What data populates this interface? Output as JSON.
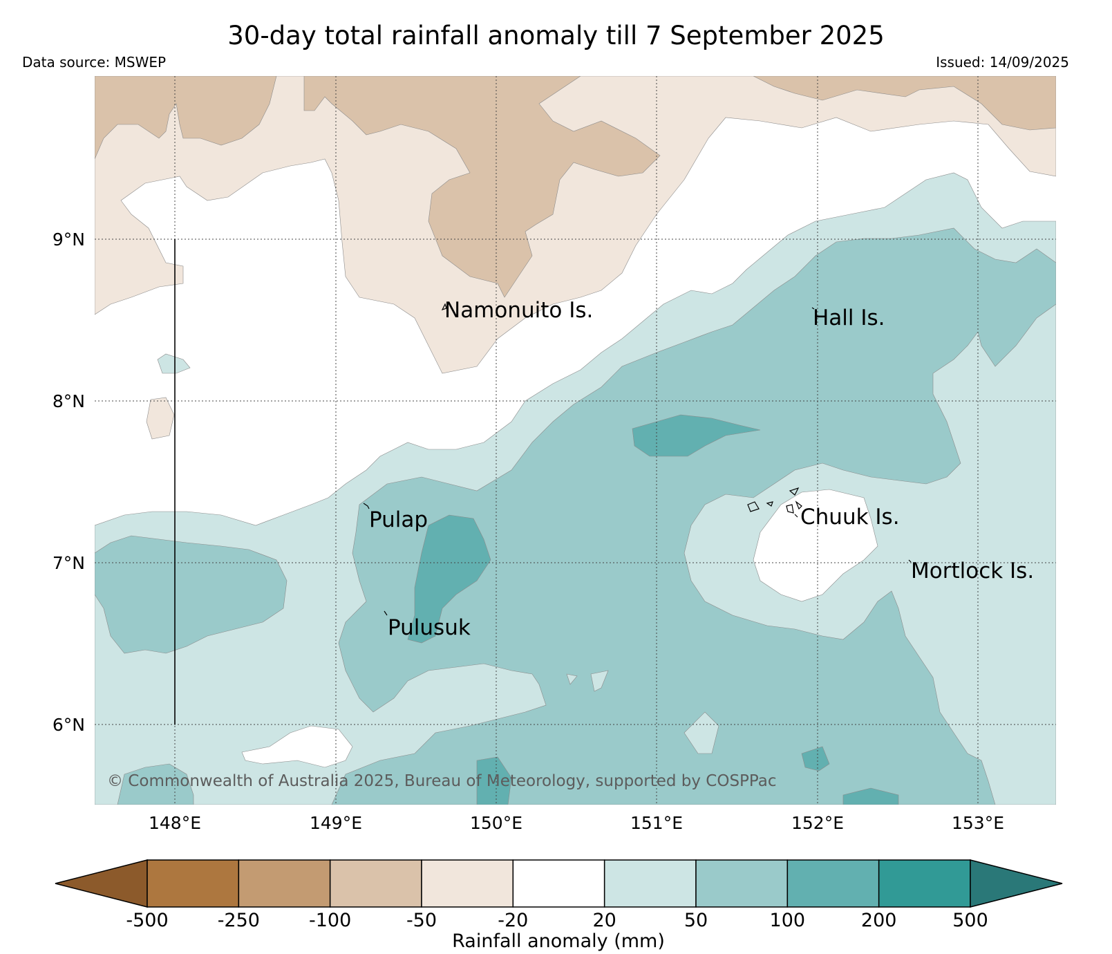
{
  "header": {
    "title": "30-day total rainfall anomaly till 7 September 2025",
    "source": "Data source: MSWEP",
    "issued": "Issued: 14/09/2025"
  },
  "map": {
    "lat_ticks": [
      "9°N",
      "8°N",
      "7°N",
      "6°N"
    ],
    "lon_ticks": [
      "148°E",
      "149°E",
      "150°E",
      "151°E",
      "152°E",
      "153°E"
    ],
    "places": {
      "namonuito": "Namonuito Is.",
      "hall": "Hall Is.",
      "pulap": "Pulap",
      "chuuk": "Chuuk Is.",
      "mortlock": "Mortlock Is.",
      "pulusuk": "Pulusuk"
    },
    "copyright": "© Commonwealth of Australia 2025, Bureau of Meteorology, supported by COSPPac"
  },
  "colorbar": {
    "label": "Rainfall anomaly (mm)",
    "ticks": [
      "-500",
      "-250",
      "-100",
      "-50",
      "-20",
      "20",
      "50",
      "100",
      "200",
      "500"
    ],
    "colors": [
      "#8c5a2b",
      "#ad773f",
      "#c39b72",
      "#dac2aa",
      "#f1e6dc",
      "#ffffff",
      "#cde5e4",
      "#9acaca",
      "#62b0b0",
      "#319a96",
      "#2a7878"
    ]
  }
}
